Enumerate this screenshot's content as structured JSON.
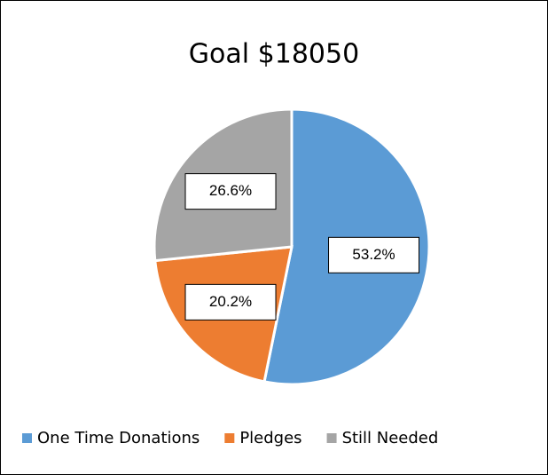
{
  "chart_data": {
    "type": "pie",
    "title": "Goal $18050",
    "categories": [
      "One Time Donations",
      "Pledges",
      "Still Needed"
    ],
    "values": [
      53.2,
      20.2,
      26.6
    ],
    "value_labels": [
      "53.2%",
      "20.2%",
      "26.6%"
    ],
    "colors": [
      "#5b9bd5",
      "#ed7d31",
      "#a5a5a5"
    ],
    "legend": "bottom"
  }
}
